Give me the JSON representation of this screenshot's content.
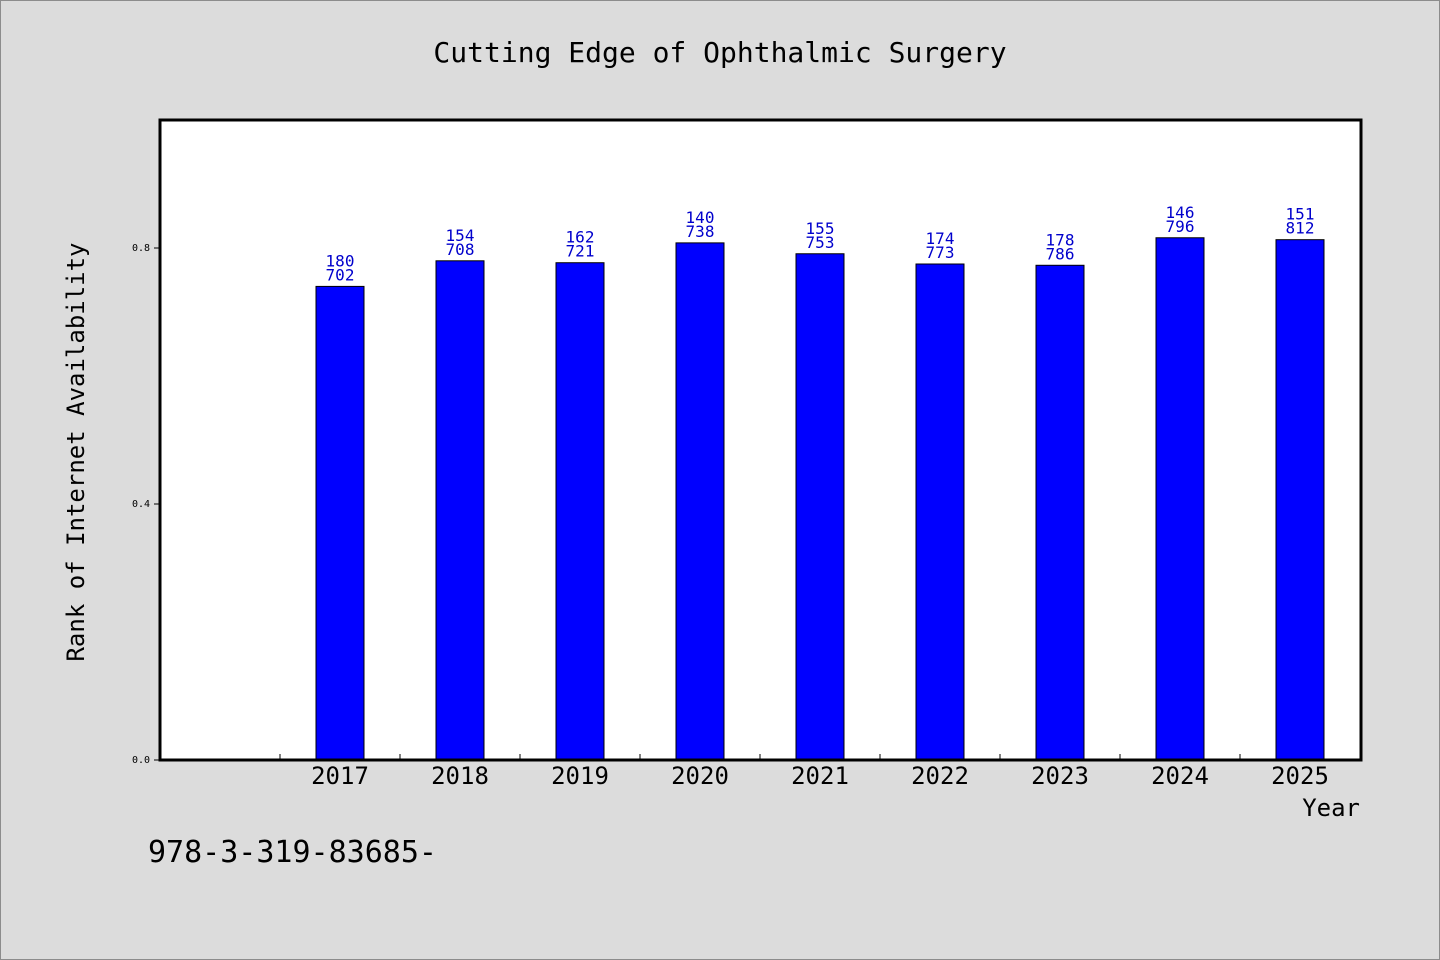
{
  "chart_data": {
    "type": "bar",
    "title": "Cutting Edge of Ophthalmic Surgery",
    "xlabel": "Year",
    "ylabel": "Rank of Internet Availability",
    "categories": [
      "2017",
      "2018",
      "2019",
      "2020",
      "2021",
      "2022",
      "2023",
      "2024",
      "2025"
    ],
    "values": [
      0.74,
      0.78,
      0.777,
      0.808,
      0.791,
      0.775,
      0.773,
      0.816,
      0.813
    ],
    "data_labels": [
      [
        "180",
        "702"
      ],
      [
        "154",
        "708"
      ],
      [
        "162",
        "721"
      ],
      [
        "140",
        "738"
      ],
      [
        "155",
        "753"
      ],
      [
        "174",
        "773"
      ],
      [
        "178",
        "786"
      ],
      [
        "146",
        "796"
      ],
      [
        "151",
        "812"
      ]
    ],
    "yticks": [
      "0.0",
      "0.4",
      "0.8"
    ],
    "ylim": [
      0,
      1.0
    ],
    "bar_color": "#0000ff",
    "label_color": "#0000cc",
    "plot_background": "#ffffff",
    "page_background": "#dcdcdc",
    "grid": false,
    "legend": "none"
  },
  "footnote": "978-3-319-83685-"
}
